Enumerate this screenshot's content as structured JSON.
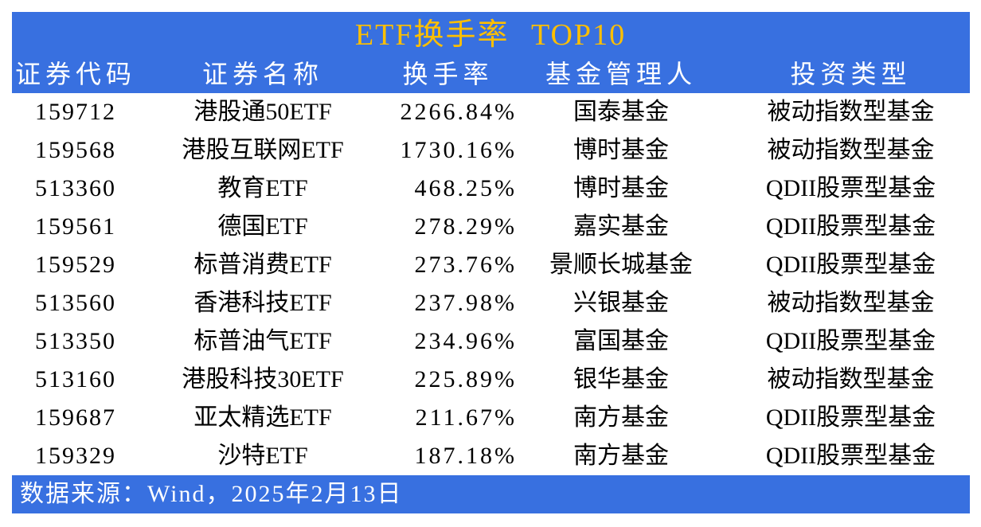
{
  "title": "ETF换手率 TOP10",
  "colors": {
    "banner_blue": "#3870E0",
    "title_gold": "#FEBF00",
    "header_text": "#FFFFFF",
    "body_text": "#000000",
    "row_background": "#FFFFFF"
  },
  "table": {
    "columns": [
      "证券代码",
      "证券名称",
      "换手率",
      "基金管理人",
      "投资类型"
    ],
    "rows": [
      {
        "code": "159712",
        "name": "港股通50ETF",
        "rate": "2266.84%",
        "manager": "国泰基金",
        "type": "被动指数型基金"
      },
      {
        "code": "159568",
        "name": "港股互联网ETF",
        "rate": "1730.16%",
        "manager": "博时基金",
        "type": "被动指数型基金"
      },
      {
        "code": "513360",
        "name": "教育ETF",
        "rate": "468.25%",
        "manager": "博时基金",
        "type": "QDII股票型基金"
      },
      {
        "code": "159561",
        "name": "德国ETF",
        "rate": "278.29%",
        "manager": "嘉实基金",
        "type": "QDII股票型基金"
      },
      {
        "code": "159529",
        "name": "标普消费ETF",
        "rate": "273.76%",
        "manager": "景顺长城基金",
        "type": "QDII股票型基金"
      },
      {
        "code": "513560",
        "name": "香港科技ETF",
        "rate": "237.98%",
        "manager": "兴银基金",
        "type": "被动指数型基金"
      },
      {
        "code": "513350",
        "name": "标普油气ETF",
        "rate": "234.96%",
        "manager": "富国基金",
        "type": "QDII股票型基金"
      },
      {
        "code": "513160",
        "name": "港股科技30ETF",
        "rate": "225.89%",
        "manager": "银华基金",
        "type": "被动指数型基金"
      },
      {
        "code": "159687",
        "name": "亚太精选ETF",
        "rate": "211.67%",
        "manager": "南方基金",
        "type": "QDII股票型基金"
      },
      {
        "code": "159329",
        "name": "沙特ETF",
        "rate": "187.18%",
        "manager": "南方基金",
        "type": "QDII股票型基金"
      }
    ]
  },
  "footer": {
    "source": "数据来源：Wind，2025年2月13日"
  },
  "chart_data": {
    "type": "table",
    "title": "ETF换手率 TOP10",
    "columns": [
      "证券代码",
      "证券名称",
      "换手率",
      "基金管理人",
      "投资类型"
    ],
    "rows": [
      [
        "159712",
        "港股通50ETF",
        "2266.84%",
        "国泰基金",
        "被动指数型基金"
      ],
      [
        "159568",
        "港股互联网ETF",
        "1730.16%",
        "博时基金",
        "被动指数型基金"
      ],
      [
        "513360",
        "教育ETF",
        "468.25%",
        "博时基金",
        "QDII股票型基金"
      ],
      [
        "159561",
        "德国ETF",
        "278.29%",
        "嘉实基金",
        "QDII股票型基金"
      ],
      [
        "159529",
        "标普消费ETF",
        "273.76%",
        "景顺长城基金",
        "QDII股票型基金"
      ],
      [
        "513560",
        "香港科技ETF",
        "237.98%",
        "兴银基金",
        "被动指数型基金"
      ],
      [
        "513350",
        "标普油气ETF",
        "234.96%",
        "富国基金",
        "QDII股票型基金"
      ],
      [
        "513160",
        "港股科技30ETF",
        "225.89%",
        "银华基金",
        "被动指数型基金"
      ],
      [
        "159687",
        "亚太精选ETF",
        "211.67%",
        "南方基金",
        "QDII股票型基金"
      ],
      [
        "159329",
        "沙特ETF",
        "187.18%",
        "南方基金",
        "QDII股票型基金"
      ]
    ],
    "turnover_values_pct": [
      2266.84,
      1730.16,
      468.25,
      278.29,
      273.76,
      237.98,
      234.96,
      225.89,
      211.67,
      187.18
    ]
  }
}
